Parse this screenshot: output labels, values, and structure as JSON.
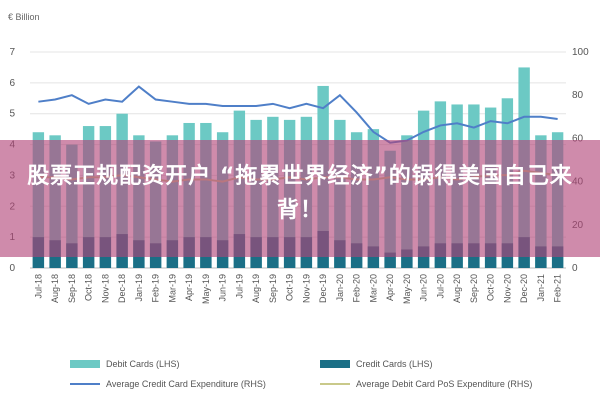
{
  "chart_data": {
    "type": "bar",
    "unit_label": "€ Billion",
    "categories": [
      "Jul-18",
      "Aug-18",
      "Sep-18",
      "Oct-18",
      "Nov-18",
      "Dec-18",
      "Jan-19",
      "Feb-19",
      "Mar-19",
      "Apr-19",
      "May-19",
      "Jun-19",
      "Jul-19",
      "Aug-19",
      "Sep-19",
      "Oct-19",
      "Nov-19",
      "Dec-19",
      "Jan-20",
      "Feb-20",
      "Mar-20",
      "Apr-20",
      "May-20",
      "Jun-20",
      "Jul-20",
      "Aug-20",
      "Sep-20",
      "Oct-20",
      "Nov-20",
      "Dec-20",
      "Jan-21",
      "Feb-21"
    ],
    "series": [
      {
        "name": "Debit Cards (LHS)",
        "axis": "left",
        "type": "bar",
        "color": "#6cc9c4",
        "values": [
          4.4,
          4.3,
          4.0,
          4.6,
          4.6,
          5.0,
          4.3,
          4.1,
          4.3,
          4.7,
          4.7,
          4.4,
          5.1,
          4.8,
          4.9,
          4.8,
          4.9,
          5.9,
          4.8,
          4.4,
          4.5,
          3.8,
          4.3,
          5.1,
          5.4,
          5.3,
          5.3,
          5.2,
          5.5,
          6.5,
          4.3,
          4.4
        ]
      },
      {
        "name": "Credit Cards (LHS)",
        "axis": "left",
        "type": "bar",
        "color": "#1b6f86",
        "values": [
          1.0,
          0.9,
          0.8,
          1.0,
          1.0,
          1.1,
          0.9,
          0.8,
          0.9,
          1.0,
          1.0,
          0.9,
          1.1,
          1.0,
          1.0,
          1.0,
          1.0,
          1.2,
          0.9,
          0.8,
          0.7,
          0.5,
          0.6,
          0.7,
          0.8,
          0.8,
          0.8,
          0.8,
          0.8,
          1.0,
          0.7,
          0.7
        ]
      },
      {
        "name": "Average Credit Card Expenditure (RHS)",
        "axis": "right",
        "type": "line",
        "color": "#4f7fc8",
        "values": [
          77,
          78,
          80,
          76,
          78,
          77,
          84,
          78,
          77,
          76,
          76,
          75,
          75,
          75,
          76,
          74,
          76,
          74,
          80,
          72,
          63,
          58,
          59,
          63,
          66,
          67,
          65,
          68,
          67,
          70,
          70,
          69
        ]
      },
      {
        "name": "Average Debit Card PoS Expenditure (RHS)",
        "axis": "right",
        "type": "line",
        "color": "#c9c98a",
        "values": [
          42,
          42,
          41,
          42,
          42,
          43,
          42,
          41,
          40,
          41,
          41,
          40,
          42,
          41,
          41,
          42,
          41,
          42,
          42,
          41,
          41,
          42,
          41,
          41,
          42,
          41,
          42,
          43,
          43,
          45,
          44,
          43
        ]
      }
    ],
    "ylim_left": [
      0,
      7
    ],
    "ylim_right": [
      0,
      100
    ],
    "yticks_left": [
      "0",
      "1",
      "2",
      "3",
      "4",
      "5",
      "6",
      "7"
    ],
    "yticks_right": [
      "0",
      "20",
      "40",
      "60",
      "80",
      "100"
    ],
    "grid": true,
    "legend_position": "bottom"
  },
  "banner": {
    "text": "股票正规配资开户 “拖累世界经济”的锅得美国自己来背！"
  }
}
